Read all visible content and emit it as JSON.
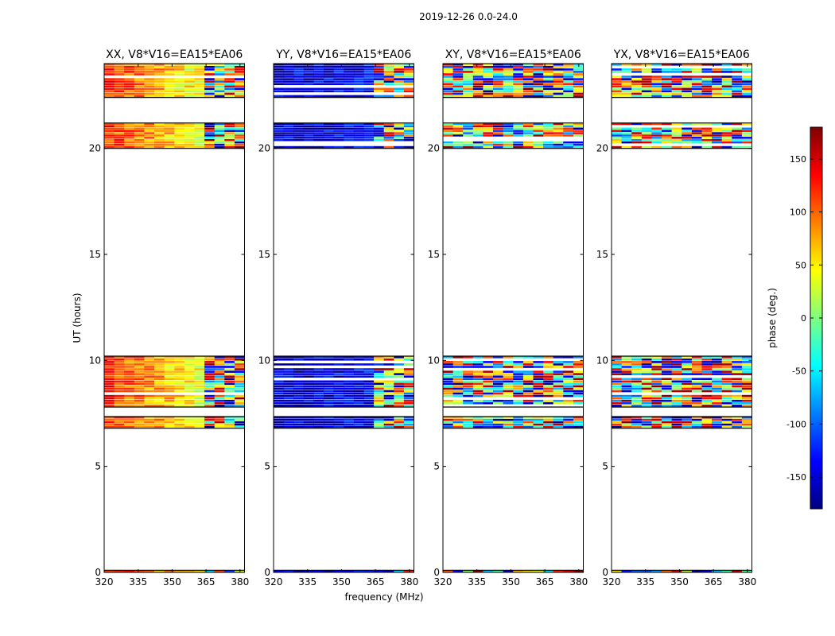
{
  "figure": {
    "suptitle": "2019-12-26 0.0-24.0",
    "xlabel": "frequency (MHz)",
    "ylabel": "UT (hours)"
  },
  "chart_data": {
    "type": "heatmap",
    "title": "2019-12-26 0.0-24.0",
    "xlabel": "frequency (MHz)",
    "ylabel": "UT (hours)",
    "xlim": [
      320,
      382
    ],
    "ylim": [
      0,
      24
    ],
    "x_ticks": [
      320,
      335,
      350,
      365,
      380
    ],
    "y_ticks": [
      0,
      5,
      10,
      15,
      20
    ],
    "grid": false,
    "observation_bands_hours": [
      [
        0.0,
        0.1
      ],
      [
        6.8,
        7.35
      ],
      [
        7.8,
        10.2
      ],
      [
        20.0,
        21.2
      ],
      [
        22.4,
        24.0
      ]
    ],
    "band_mode_change_mhz": 363,
    "panels": [
      {
        "title": "XX, V8*V16=EA15*EA06",
        "mean_phase_low_band": 120,
        "mean_phase_high_band": -60,
        "coherent": true
      },
      {
        "title": "YY, V8*V16=EA15*EA06",
        "mean_phase_low_band": -150,
        "mean_phase_high_band": -120,
        "coherent": true
      },
      {
        "title": "XY, V8*V16=EA15*EA06",
        "mean_phase_low_band": 0,
        "mean_phase_high_band": 0,
        "coherent": false
      },
      {
        "title": "YX, V8*V16=EA15*EA06",
        "mean_phase_low_band": 0,
        "mean_phase_high_band": 0,
        "coherent": false
      }
    ],
    "colorbar": {
      "label": "phase (deg.)",
      "range": [
        -180,
        180
      ],
      "ticks": [
        -150,
        -100,
        -50,
        0,
        50,
        100,
        150
      ],
      "colormap": "jet"
    }
  }
}
